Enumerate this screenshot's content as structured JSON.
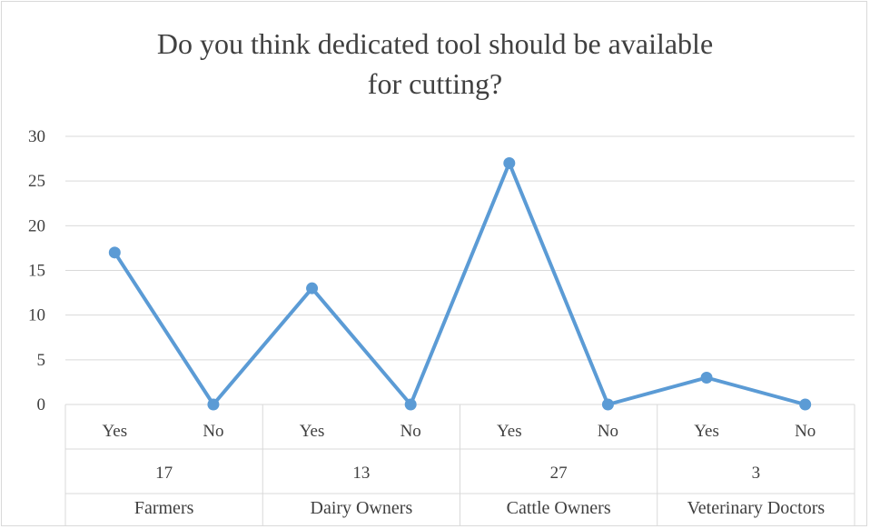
{
  "chart_data": {
    "type": "line",
    "title": "Do you think dedicated tool should be available for cutting?",
    "title_lines": [
      "Do you think dedicated tool should be available",
      "for cutting?"
    ],
    "ylim": [
      0,
      30
    ],
    "yticks": [
      0,
      5,
      10,
      15,
      20,
      25,
      30
    ],
    "grid": true,
    "categories": [
      "Yes",
      "No",
      "Yes",
      "No",
      "Yes",
      "No",
      "Yes",
      "No"
    ],
    "values": [
      17,
      0,
      13,
      0,
      27,
      0,
      3,
      0
    ],
    "groups": [
      {
        "name": "Farmers",
        "value_label": "17"
      },
      {
        "name": "Dairy Owners",
        "value_label": "13"
      },
      {
        "name": "Cattle Owners",
        "value_label": "27"
      },
      {
        "name": "Veterinary Doctors",
        "value_label": "3"
      }
    ],
    "colors": {
      "line": "#5b9bd5",
      "grid": "#d9d9d9",
      "text": "#404040"
    }
  }
}
